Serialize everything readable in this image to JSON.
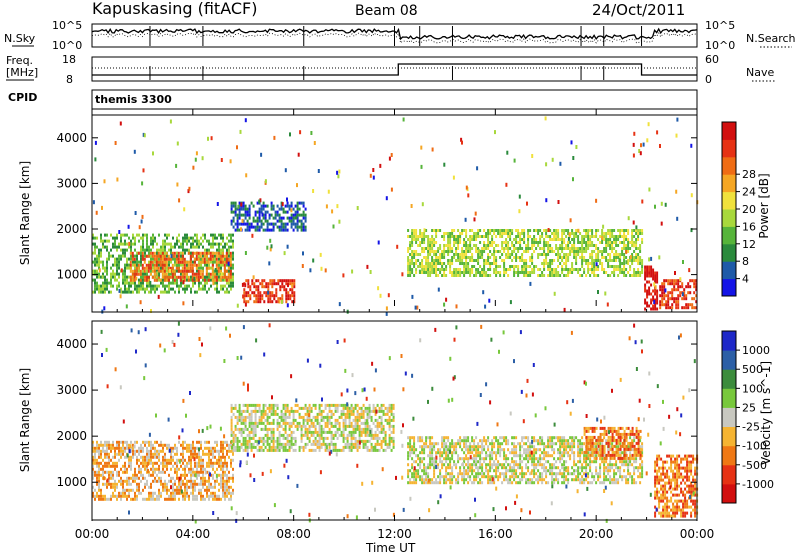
{
  "header": {
    "station": "Kapuskasing (fitACF)",
    "beam": "Beam 08",
    "date": "24/Oct/2011"
  },
  "noise_panel": {
    "left_label": "N.Sky",
    "left_ticks": [
      "10^5",
      "10^0"
    ],
    "right_label": "N.Search",
    "right_ticks": [
      "10^5",
      "10^0"
    ]
  },
  "freq_panel": {
    "left_label_line1": "Freq.",
    "left_label_line2": "[MHz]",
    "left_ticks": [
      "18",
      "8"
    ],
    "right_label": "Nave",
    "right_ticks": [
      "60",
      "0"
    ]
  },
  "cpid": {
    "label": "CPID",
    "value": "themis 3300"
  },
  "x_axis": {
    "label": "Time UT",
    "ticks": [
      "00:00",
      "04:00",
      "08:00",
      "12:00",
      "16:00",
      "20:00",
      "00:00"
    ]
  },
  "chart_data": [
    {
      "type": "heatmap",
      "title": "",
      "xlabel": "",
      "ylabel": "Slant Range [km]",
      "x_range_hours": [
        0,
        24
      ],
      "ylim": [
        180,
        4500
      ],
      "y_ticks": [
        "1000",
        "2000",
        "3000",
        "4000"
      ],
      "colorbar": {
        "label": "Power [dB]",
        "ticks": [
          "4",
          "8",
          "12",
          "16",
          "20",
          "24",
          "28"
        ],
        "colors": [
          "#1414e6",
          "#1e5aa8",
          "#2a8a3c",
          "#56b43a",
          "#a8d83c",
          "#f0e13c",
          "#f5a623",
          "#ef6c14",
          "#e63214",
          "#d20f0f"
        ]
      },
      "regions": [
        {
          "t": [
            0.0,
            5.6
          ],
          "r": [
            650,
            1900
          ],
          "level": 3,
          "note": "mixed green/blue"
        },
        {
          "t": [
            1.5,
            5.5
          ],
          "r": [
            900,
            1500
          ],
          "level": 7
        },
        {
          "t": [
            5.5,
            8.5
          ],
          "r": [
            2000,
            2600
          ],
          "level": 1
        },
        {
          "t": [
            6.0,
            8.0
          ],
          "r": [
            400,
            900
          ],
          "level": 8
        },
        {
          "t": [
            12.5,
            21.8
          ],
          "r": [
            1000,
            2000
          ],
          "level": 4
        },
        {
          "t": [
            21.9,
            22.4
          ],
          "r": [
            250,
            1200
          ],
          "level": 9
        },
        {
          "t": [
            22.5,
            24.0
          ],
          "r": [
            250,
            900
          ],
          "level": 8
        }
      ]
    },
    {
      "type": "heatmap",
      "title": "",
      "xlabel": "Time UT",
      "ylabel": "Slant Range [km]",
      "x_range_hours": [
        0,
        24
      ],
      "ylim": [
        180,
        4500
      ],
      "y_ticks": [
        "1000",
        "2000",
        "3000",
        "4000"
      ],
      "colorbar": {
        "label": "Velocity [m s^-1]",
        "ticks": [
          "1000",
          "500",
          "100",
          "25",
          "-25",
          "-100",
          "-500",
          "-1000"
        ],
        "colors": [
          "#1e28c8",
          "#2c5fa6",
          "#3c8c3c",
          "#78c83c",
          "#c8c8c0",
          "#f5b432",
          "#ef7814",
          "#e63214",
          "#d20f0f"
        ]
      },
      "regions": [
        {
          "t": [
            0.0,
            5.6
          ],
          "r": [
            650,
            1900
          ],
          "level": 5,
          "note": "orange/grey"
        },
        {
          "t": [
            5.5,
            12.0
          ],
          "r": [
            1700,
            2700
          ],
          "level": 4,
          "note": "ground scatter"
        },
        {
          "t": [
            12.5,
            21.8
          ],
          "r": [
            1000,
            2000
          ],
          "level": 4,
          "note": "ground scatter"
        },
        {
          "t": [
            19.5,
            21.8
          ],
          "r": [
            1500,
            2200
          ],
          "level": 6
        },
        {
          "t": [
            22.3,
            24.0
          ],
          "r": [
            250,
            1600
          ],
          "level": 6
        }
      ]
    }
  ]
}
